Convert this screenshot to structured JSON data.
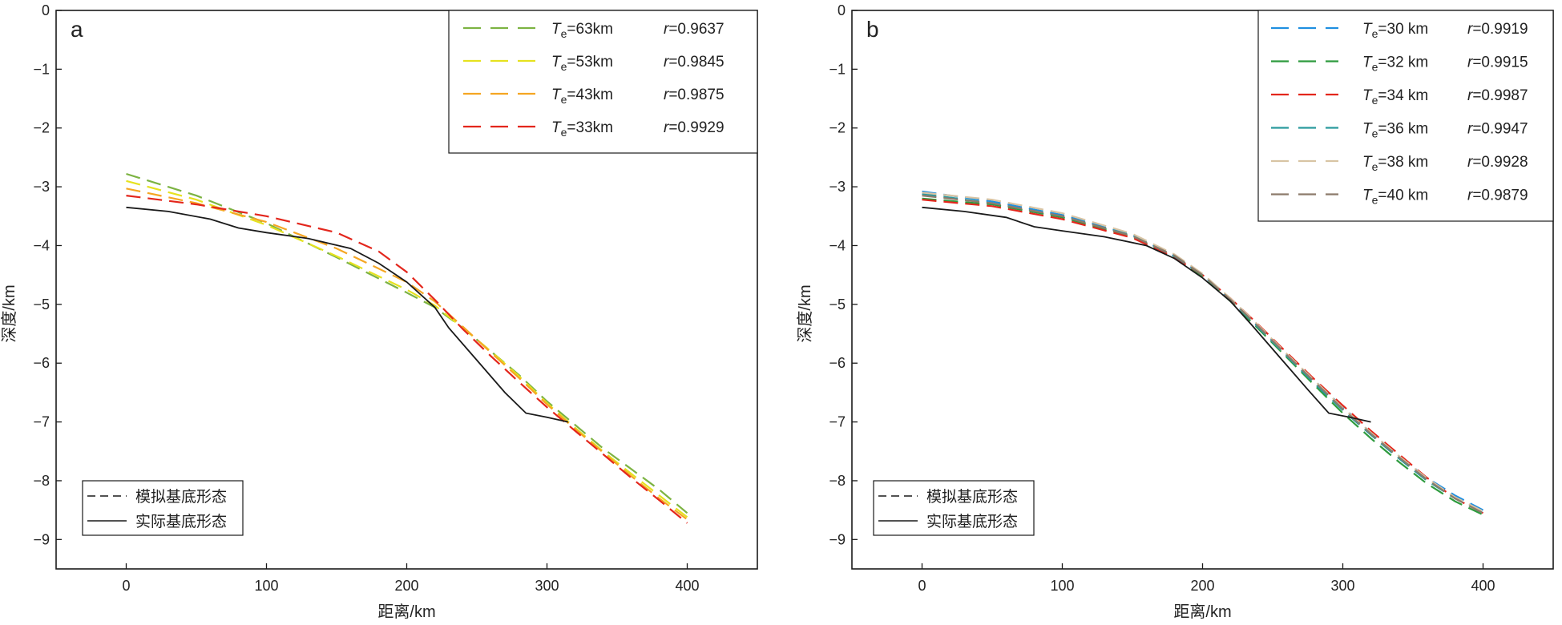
{
  "chart_data": [
    {
      "type": "line",
      "panel_label": "a",
      "xlabel": "距离/km",
      "ylabel": "深度/km",
      "xlim": [
        -50,
        450
      ],
      "ylim": [
        -9.5,
        0
      ],
      "xticks": [
        "0",
        "100",
        "200",
        "300",
        "400"
      ],
      "yticks": [
        "0",
        "−1",
        "−2",
        "−3",
        "−4",
        "−5",
        "−6",
        "−7",
        "−8",
        "−9"
      ],
      "grid": false,
      "legend_placement": "top-right",
      "series": [
        {
          "te_label": "=63km",
          "r_label": "=0.9637",
          "color": "#7CB342",
          "style": "dashed",
          "x": [
            0,
            50,
            100,
            150,
            200,
            220,
            240,
            260,
            280,
            300,
            320,
            340,
            360,
            380,
            400
          ],
          "y": [
            -2.78,
            -3.15,
            -3.62,
            -4.2,
            -4.8,
            -5.05,
            -5.4,
            -5.8,
            -6.2,
            -6.65,
            -7.05,
            -7.45,
            -7.8,
            -8.15,
            -8.55
          ]
        },
        {
          "te_label": "=53km",
          "r_label": "=0.9845",
          "color": "#E6E21F",
          "style": "dashed",
          "x": [
            0,
            50,
            100,
            150,
            200,
            220,
            240,
            260,
            280,
            300,
            320,
            340,
            360,
            380,
            400
          ],
          "y": [
            -2.9,
            -3.22,
            -3.65,
            -4.18,
            -4.75,
            -5.02,
            -5.4,
            -5.8,
            -6.22,
            -6.68,
            -7.1,
            -7.5,
            -7.88,
            -8.25,
            -8.62
          ]
        },
        {
          "te_label": "=43km",
          "r_label": "=0.9875",
          "color": "#F5A623",
          "style": "dashed",
          "x": [
            0,
            50,
            100,
            150,
            200,
            220,
            240,
            260,
            280,
            300,
            320,
            340,
            360,
            380,
            400
          ],
          "y": [
            -3.03,
            -3.28,
            -3.6,
            -4.05,
            -4.62,
            -4.95,
            -5.38,
            -5.82,
            -6.25,
            -6.7,
            -7.12,
            -7.52,
            -7.92,
            -8.3,
            -8.66
          ]
        },
        {
          "te_label": "=33km",
          "r_label": "=0.9929",
          "color": "#E3261C",
          "style": "dashed",
          "x": [
            0,
            50,
            100,
            150,
            180,
            200,
            220,
            240,
            260,
            280,
            300,
            320,
            340,
            360,
            380,
            400
          ],
          "y": [
            -3.15,
            -3.3,
            -3.5,
            -3.78,
            -4.1,
            -4.45,
            -4.92,
            -5.42,
            -5.88,
            -6.32,
            -6.75,
            -7.15,
            -7.55,
            -7.95,
            -8.33,
            -8.72
          ]
        },
        {
          "name": "实际基底形态",
          "color": "#1a1a1a",
          "style": "solid",
          "x": [
            0,
            30,
            60,
            80,
            100,
            130,
            160,
            180,
            200,
            220,
            230,
            250,
            270,
            285,
            300,
            315
          ],
          "y": [
            -3.35,
            -3.42,
            -3.55,
            -3.7,
            -3.78,
            -3.88,
            -4.05,
            -4.3,
            -4.62,
            -5.05,
            -5.4,
            -5.95,
            -6.5,
            -6.85,
            -6.92,
            -7.0
          ]
        }
      ],
      "legend_te": [
        {
          "label": "=63km",
          "r": "=0.9637",
          "color": "#7CB342"
        },
        {
          "label": "=53km",
          "r": "=0.9845",
          "color": "#E6E21F"
        },
        {
          "label": "=43km",
          "r": "=0.9875",
          "color": "#F5A623"
        },
        {
          "label": "=33km",
          "r": "=0.9929",
          "color": "#E3261C"
        }
      ],
      "legend_style": [
        {
          "label": "模拟基底形态",
          "style": "dashed"
        },
        {
          "label": "实际基底形态",
          "style": "solid"
        }
      ]
    },
    {
      "type": "line",
      "panel_label": "b",
      "xlabel": "距离/km",
      "ylabel": "深度/km",
      "xlim": [
        -50,
        450
      ],
      "ylim": [
        -9.5,
        0
      ],
      "xticks": [
        "0",
        "100",
        "200",
        "300",
        "400"
      ],
      "yticks": [
        "0",
        "−1",
        "−2",
        "−3",
        "−4",
        "−5",
        "−6",
        "−7",
        "−8",
        "−9"
      ],
      "grid": false,
      "legend_placement": "top-right",
      "series": [
        {
          "te_label": "=30 km",
          "r_label": "=0.9919",
          "color": "#1F8FE0",
          "style": "dashed",
          "x": [
            0,
            50,
            100,
            150,
            180,
            200,
            220,
            240,
            260,
            280,
            300,
            320,
            340,
            360,
            380,
            400
          ],
          "y": [
            -3.08,
            -3.25,
            -3.48,
            -3.82,
            -4.18,
            -4.5,
            -4.92,
            -5.38,
            -5.85,
            -6.3,
            -6.75,
            -7.18,
            -7.58,
            -7.95,
            -8.25,
            -8.5
          ]
        },
        {
          "te_label": "=32 km",
          "r_label": "=0.9915",
          "color": "#2E9B3E",
          "style": "dashed",
          "x": [
            0,
            50,
            100,
            150,
            180,
            200,
            220,
            240,
            260,
            280,
            300,
            320,
            340,
            360,
            380,
            400
          ],
          "y": [
            -3.2,
            -3.3,
            -3.52,
            -3.85,
            -4.2,
            -4.52,
            -4.95,
            -5.42,
            -5.9,
            -6.38,
            -6.85,
            -7.28,
            -7.68,
            -8.05,
            -8.35,
            -8.58
          ]
        },
        {
          "te_label": "=34 km",
          "r_label": "=0.9987",
          "color": "#E3261C",
          "style": "dashed",
          "x": [
            0,
            50,
            100,
            150,
            180,
            200,
            220,
            240,
            260,
            280,
            300,
            320,
            340,
            360,
            380,
            400
          ],
          "y": [
            -3.22,
            -3.33,
            -3.55,
            -3.87,
            -4.2,
            -4.5,
            -4.9,
            -5.35,
            -5.82,
            -6.28,
            -6.72,
            -7.15,
            -7.55,
            -7.95,
            -8.3,
            -8.55
          ]
        },
        {
          "te_label": "=36 km",
          "r_label": "=0.9947",
          "color": "#2A9A9E",
          "style": "dashed",
          "x": [
            0,
            50,
            100,
            150,
            180,
            200,
            220,
            240,
            260,
            280,
            300,
            320,
            340,
            360,
            380,
            400
          ],
          "y": [
            -3.12,
            -3.28,
            -3.5,
            -3.83,
            -4.18,
            -4.5,
            -4.93,
            -5.4,
            -5.88,
            -6.35,
            -6.8,
            -7.22,
            -7.62,
            -8.0,
            -8.3,
            -8.55
          ]
        },
        {
          "te_label": "=38 km",
          "r_label": "=0.9928",
          "color": "#D8C4A4",
          "style": "dashed",
          "x": [
            0,
            50,
            100,
            150,
            180,
            200,
            220,
            240,
            260,
            280,
            300,
            320,
            340,
            360,
            380,
            400
          ],
          "y": [
            -3.1,
            -3.22,
            -3.45,
            -3.8,
            -4.15,
            -4.48,
            -4.9,
            -5.36,
            -5.84,
            -6.3,
            -6.76,
            -7.18,
            -7.58,
            -7.96,
            -8.28,
            -8.52
          ]
        },
        {
          "te_label": "=40 km",
          "r_label": "=0.9879",
          "color": "#8C7B6B",
          "style": "dashed",
          "x": [
            0,
            50,
            100,
            150,
            180,
            200,
            220,
            240,
            260,
            280,
            300,
            320,
            340,
            360,
            380,
            400
          ],
          "y": [
            -3.15,
            -3.28,
            -3.5,
            -3.84,
            -4.17,
            -4.5,
            -4.92,
            -5.38,
            -5.86,
            -6.32,
            -6.78,
            -7.2,
            -7.6,
            -7.98,
            -8.3,
            -8.55
          ]
        },
        {
          "name": "实际基底形态",
          "color": "#1a1a1a",
          "style": "solid",
          "x": [
            0,
            30,
            60,
            80,
            100,
            130,
            160,
            180,
            200,
            220,
            235,
            255,
            275,
            290,
            305,
            320
          ],
          "y": [
            -3.35,
            -3.42,
            -3.52,
            -3.68,
            -3.75,
            -3.85,
            -4.0,
            -4.22,
            -4.55,
            -4.95,
            -5.35,
            -5.9,
            -6.45,
            -6.85,
            -6.92,
            -7.0
          ]
        }
      ],
      "legend_te": [
        {
          "label": "=30 km",
          "r": "=0.9919",
          "color": "#1F8FE0"
        },
        {
          "label": "=32 km",
          "r": "=0.9915",
          "color": "#2E9B3E"
        },
        {
          "label": "=34 km",
          "r": "=0.9987",
          "color": "#E3261C"
        },
        {
          "label": "=36 km",
          "r": "=0.9947",
          "color": "#2A9A9E"
        },
        {
          "label": "=38 km",
          "r": "=0.9928",
          "color": "#D8C4A4"
        },
        {
          "label": "=40 km",
          "r": "=0.9879",
          "color": "#8C7B6B"
        }
      ],
      "legend_style": [
        {
          "label": "模拟基底形态",
          "style": "dashed"
        },
        {
          "label": "实际基底形态",
          "style": "solid"
        }
      ]
    }
  ],
  "legend_symbols": {
    "te_main": "T",
    "te_sub": "e",
    "r": "r"
  }
}
